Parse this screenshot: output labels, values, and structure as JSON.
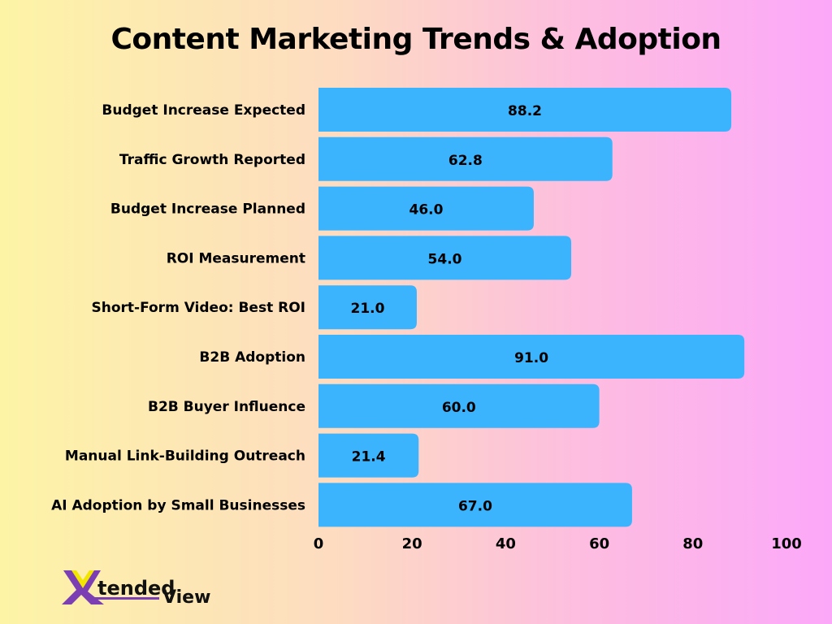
{
  "chart_data": {
    "type": "bar",
    "orientation": "horizontal",
    "title": "Content Marketing Trends & Adoption",
    "categories": [
      "Budget Increase Expected",
      "Traffic Growth Reported",
      "Budget Increase Planned",
      "ROI Measurement",
      "Short-Form Video: Best ROI",
      "B2B Adoption",
      "B2B Buyer Influence",
      "Manual Link-Building Outreach",
      "AI Adoption by Small Businesses"
    ],
    "values": [
      88.2,
      62.8,
      46.0,
      54.0,
      21.0,
      91.0,
      60.0,
      21.4,
      67.0
    ],
    "xlim": [
      0,
      100
    ],
    "xticks": [
      0,
      20,
      40,
      60,
      80,
      100
    ],
    "grid": false,
    "bar_color": "#3cb4fd",
    "data_labels": true
  },
  "logo": {
    "text": "XtendedView",
    "colors": {
      "purple": "#7b3fb3",
      "yellow": "#f2e600"
    }
  }
}
